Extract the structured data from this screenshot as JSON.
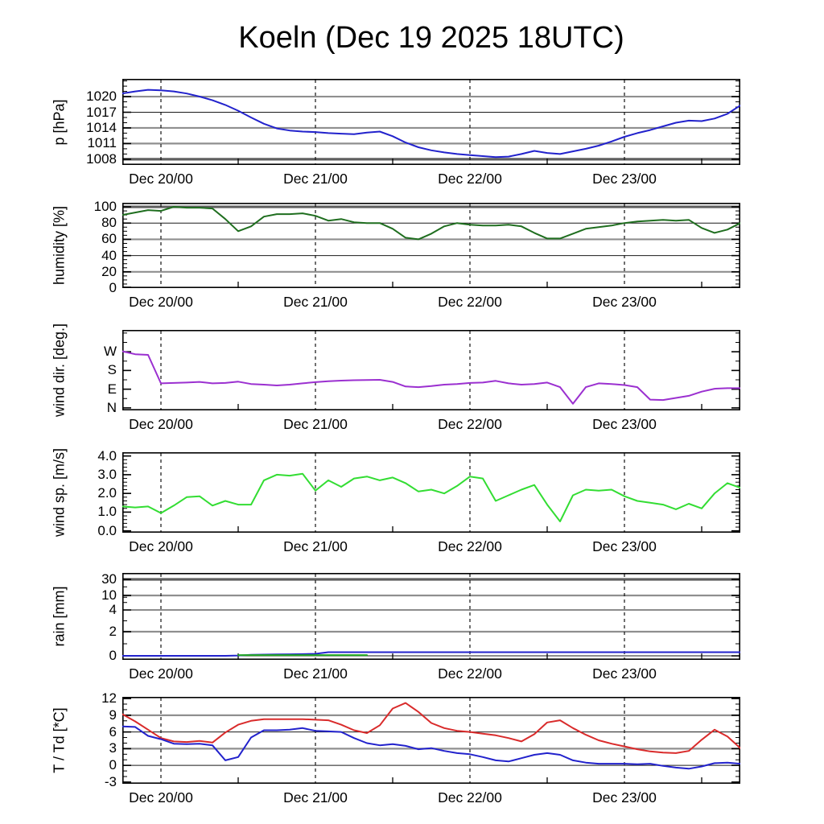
{
  "title": "Koeln (Dec 19 2025 18UTC)",
  "colors": {
    "pressure": "#2222cc",
    "humidity": "#1f6e1f",
    "wind_direction": "#9b30d0",
    "wind_speed": "#33dd33",
    "rain": "#2222cc",
    "rain_alt": "#22aa22",
    "temperature": "#d92b2b",
    "dewpoint": "#2222cc"
  },
  "x_axis": {
    "total_hours": 96,
    "day_line_hours": [
      6,
      30,
      54,
      78
    ],
    "midday_tick_hours": [
      18,
      42,
      66,
      90
    ],
    "labels": [
      {
        "h": 6,
        "text": "Dec 20/00"
      },
      {
        "h": 30,
        "text": "Dec 21/00"
      },
      {
        "h": 54,
        "text": "Dec 22/00"
      },
      {
        "h": 78,
        "text": "Dec 23/00"
      }
    ]
  },
  "chart_data": [
    {
      "id": "pressure",
      "type": "line",
      "ylabel": "p [hPa]",
      "ymin": 1006.9,
      "ymax": 1023.4,
      "minor_step": 1,
      "yticks": [
        {
          "v": 1008,
          "t": "1008"
        },
        {
          "v": 1011,
          "t": "1011"
        },
        {
          "v": 1014,
          "t": "1014"
        },
        {
          "v": 1017,
          "t": "1017"
        },
        {
          "v": 1020,
          "t": "1020"
        }
      ],
      "grid": [
        {
          "v": 1008,
          "s": "heavy"
        },
        {
          "v": 1011,
          "s": "gray"
        },
        {
          "v": 1014,
          "s": "gray"
        },
        {
          "v": 1017,
          "s": "black"
        },
        {
          "v": 1020,
          "s": "gray"
        }
      ],
      "series": [
        {
          "name": "pressure",
          "color": "#2222cc",
          "step_h": 2,
          "values": [
            1020.6,
            1021.0,
            1021.3,
            1021.2,
            1021.0,
            1020.6,
            1020.0,
            1019.3,
            1018.4,
            1017.3,
            1016.0,
            1014.8,
            1013.9,
            1013.5,
            1013.3,
            1013.2,
            1013.0,
            1012.9,
            1012.8,
            1013.1,
            1013.3,
            1012.4,
            1011.2,
            1010.3,
            1009.7,
            1009.3,
            1009.0,
            1008.8,
            1008.6,
            1008.4,
            1008.5,
            1009.0,
            1009.6,
            1009.2,
            1009.0,
            1009.5,
            1010.0,
            1010.6,
            1011.4,
            1012.3,
            1013.0,
            1013.6,
            1014.3,
            1015.0,
            1015.4,
            1015.3,
            1015.8,
            1016.7,
            1018.3
          ]
        }
      ]
    },
    {
      "id": "humidity",
      "type": "line",
      "ylabel": "humidity [%]",
      "ymin": 0,
      "ymax": 105,
      "minor_step": 5,
      "yticks": [
        {
          "v": 0,
          "t": "0"
        },
        {
          "v": 20,
          "t": "20"
        },
        {
          "v": 40,
          "t": "40"
        },
        {
          "v": 60,
          "t": "60"
        },
        {
          "v": 80,
          "t": "80"
        },
        {
          "v": 100,
          "t": "100"
        }
      ],
      "grid": [
        {
          "v": 100,
          "s": "heavy"
        },
        {
          "v": 80,
          "s": "black"
        },
        {
          "v": 60,
          "s": "gray"
        },
        {
          "v": 40,
          "s": "black"
        },
        {
          "v": 20,
          "s": "gray"
        }
      ],
      "series": [
        {
          "name": "relative_humidity",
          "color": "#1f6e1f",
          "step_h": 2,
          "values": [
            90,
            93,
            96,
            95,
            100,
            99,
            99,
            98,
            85,
            70,
            76,
            88,
            91,
            91,
            92,
            89,
            83,
            85,
            81,
            80,
            80,
            73,
            62,
            60,
            67,
            76,
            80,
            78,
            77,
            77,
            78,
            76,
            68,
            61,
            61,
            67,
            73,
            75,
            77,
            80,
            82,
            83,
            84,
            83,
            84,
            74,
            68,
            72,
            80
          ]
        }
      ]
    },
    {
      "id": "wind_dir",
      "type": "line",
      "ylabel": "wind dir. [deg.]",
      "ymin": -12,
      "ymax": 375,
      "minor_vals": [
        45,
        135,
        225,
        315,
        360
      ],
      "yticks": [
        {
          "v": 0,
          "t": "N"
        },
        {
          "v": 90,
          "t": "E"
        },
        {
          "v": 180,
          "t": "S"
        },
        {
          "v": 270,
          "t": "W"
        }
      ],
      "grid": [],
      "series": [
        {
          "name": "wind_direction",
          "color": "#9b30d0",
          "step_h": 2,
          "values": [
            272,
            258,
            255,
            118,
            120,
            122,
            125,
            118,
            120,
            126,
            115,
            112,
            108,
            112,
            118,
            124,
            128,
            131,
            133,
            134,
            135,
            125,
            103,
            100,
            105,
            112,
            115,
            120,
            122,
            130,
            118,
            112,
            115,
            122,
            100,
            20,
            100,
            118,
            115,
            110,
            100,
            40,
            38,
            48,
            58,
            78,
            92,
            95,
            95
          ]
        }
      ]
    },
    {
      "id": "wind_speed",
      "type": "line",
      "ylabel": "wind sp. [m/s]",
      "ymin": -0.1,
      "ymax": 4.2,
      "minor_step": 0.2,
      "yticks": [
        {
          "v": 0,
          "t": "0.0"
        },
        {
          "v": 1,
          "t": "1.0"
        },
        {
          "v": 2,
          "t": "2.0"
        },
        {
          "v": 3,
          "t": "3.0"
        },
        {
          "v": 4,
          "t": "4.0"
        }
      ],
      "grid": [],
      "series": [
        {
          "name": "wind_speed",
          "color": "#33dd33",
          "step_h": 2,
          "values": [
            1.3,
            1.25,
            1.3,
            0.95,
            1.35,
            1.8,
            1.85,
            1.35,
            1.6,
            1.4,
            1.4,
            2.7,
            3.0,
            2.95,
            3.05,
            2.15,
            2.7,
            2.35,
            2.8,
            2.9,
            2.7,
            2.85,
            2.55,
            2.1,
            2.2,
            2.0,
            2.4,
            2.9,
            2.8,
            1.6,
            1.9,
            2.2,
            2.45,
            1.4,
            0.5,
            1.9,
            2.2,
            2.15,
            2.2,
            1.85,
            1.6,
            1.5,
            1.4,
            1.15,
            1.45,
            1.2,
            2.0,
            2.55,
            2.3
          ]
        }
      ]
    },
    {
      "id": "rain",
      "type": "line",
      "ylabel": "rain [mm]",
      "scale_points": [
        [
          0,
          0.046
        ],
        [
          1,
          0.185
        ],
        [
          2,
          0.324
        ],
        [
          3,
          0.449
        ],
        [
          4,
          0.574
        ],
        [
          6,
          0.66
        ],
        [
          8,
          0.72
        ],
        [
          10,
          0.741
        ],
        [
          20,
          0.84
        ],
        [
          30,
          0.926
        ]
      ],
      "minor_vals": [
        1,
        3,
        6,
        8,
        20
      ],
      "yticks": [
        {
          "v": 0,
          "t": "0"
        },
        {
          "v": 2,
          "t": "2"
        },
        {
          "v": 4,
          "t": "4"
        },
        {
          "v": 10,
          "t": "10"
        },
        {
          "v": 30,
          "t": "30"
        }
      ],
      "grid": [
        {
          "v": 0,
          "s": "black"
        },
        {
          "v": 2,
          "s": "gray"
        },
        {
          "v": 4,
          "s": "black"
        },
        {
          "v": 10,
          "s": "gray"
        },
        {
          "v": 30,
          "s": "heavy"
        }
      ],
      "series": [
        {
          "name": "rain_accum",
          "color": "#2222cc",
          "step_h": 2,
          "values": [
            0,
            0,
            0,
            0,
            0,
            0,
            0,
            0,
            0,
            0.03,
            0.08,
            0.1,
            0.12,
            0.13,
            0.14,
            0.17,
            0.3,
            0.3,
            0.3,
            0.3,
            0.3,
            0.3,
            0.3,
            0.3,
            0.3,
            0.3,
            0.3,
            0.3,
            0.3,
            0.3,
            0.3,
            0.3,
            0.3,
            0.3,
            0.3,
            0.3,
            0.3,
            0.3,
            0.3,
            0.3,
            0.3,
            0.3,
            0.3,
            0.3,
            0.3,
            0.3,
            0.3,
            0.3,
            0.3
          ]
        },
        {
          "name": "rain_accum_alt",
          "color": "#22aa22",
          "step_h": 2,
          "values": [
            null,
            null,
            null,
            null,
            null,
            null,
            null,
            null,
            null,
            0.06,
            0.06,
            0.06,
            0.06,
            0.06,
            0.06,
            0.06,
            0.06,
            0.06,
            0.06,
            0.06,
            null,
            null,
            null,
            null,
            null,
            null,
            null,
            null,
            null,
            null,
            null,
            null,
            null,
            null,
            null,
            null,
            null,
            null,
            null,
            null,
            null,
            null,
            null,
            null,
            null,
            null,
            null,
            null,
            null
          ]
        }
      ]
    },
    {
      "id": "temperature",
      "type": "line",
      "ylabel": "T / Td [*C]",
      "ymin": -3.3,
      "ymax": 12.3,
      "minor_step": 1,
      "yticks": [
        {
          "v": -3,
          "t": "-3"
        },
        {
          "v": 0,
          "t": "0"
        },
        {
          "v": 3,
          "t": "3"
        },
        {
          "v": 6,
          "t": "6"
        },
        {
          "v": 9,
          "t": "9"
        },
        {
          "v": 12,
          "t": "12"
        }
      ],
      "grid": [
        {
          "v": 9,
          "s": "gray"
        },
        {
          "v": 6,
          "s": "black"
        },
        {
          "v": 3,
          "s": "gray"
        },
        {
          "v": 0,
          "s": "black"
        }
      ],
      "series": [
        {
          "name": "temperature",
          "color": "#d92b2b",
          "step_h": 2,
          "values": [
            9.2,
            7.9,
            6.4,
            4.9,
            4.3,
            4.2,
            4.4,
            4.1,
            5.9,
            7.3,
            8.0,
            8.3,
            8.3,
            8.3,
            8.3,
            8.2,
            8.1,
            7.3,
            6.3,
            5.8,
            7.2,
            10.2,
            11.2,
            9.6,
            7.6,
            6.7,
            6.2,
            6.0,
            5.7,
            5.4,
            4.9,
            4.3,
            5.6,
            7.7,
            8.1,
            6.7,
            5.5,
            4.5,
            3.9,
            3.4,
            2.9,
            2.5,
            2.3,
            2.2,
            2.6,
            4.6,
            6.4,
            5.2,
            3.1
          ]
        },
        {
          "name": "dewpoint",
          "color": "#2222cc",
          "step_h": 2,
          "values": [
            7.0,
            6.9,
            5.3,
            4.7,
            3.9,
            3.8,
            3.9,
            3.6,
            0.9,
            1.5,
            5.0,
            6.3,
            6.3,
            6.4,
            6.7,
            6.2,
            6.1,
            6.0,
            4.9,
            4.0,
            3.6,
            3.8,
            3.5,
            2.9,
            3.1,
            2.6,
            2.2,
            2.0,
            1.5,
            0.9,
            0.7,
            1.3,
            1.9,
            2.2,
            1.9,
            0.9,
            0.5,
            0.3,
            0.3,
            0.3,
            0.2,
            0.3,
            -0.1,
            -0.4,
            -0.6,
            -0.2,
            0.4,
            0.5,
            0.3
          ]
        }
      ]
    }
  ]
}
